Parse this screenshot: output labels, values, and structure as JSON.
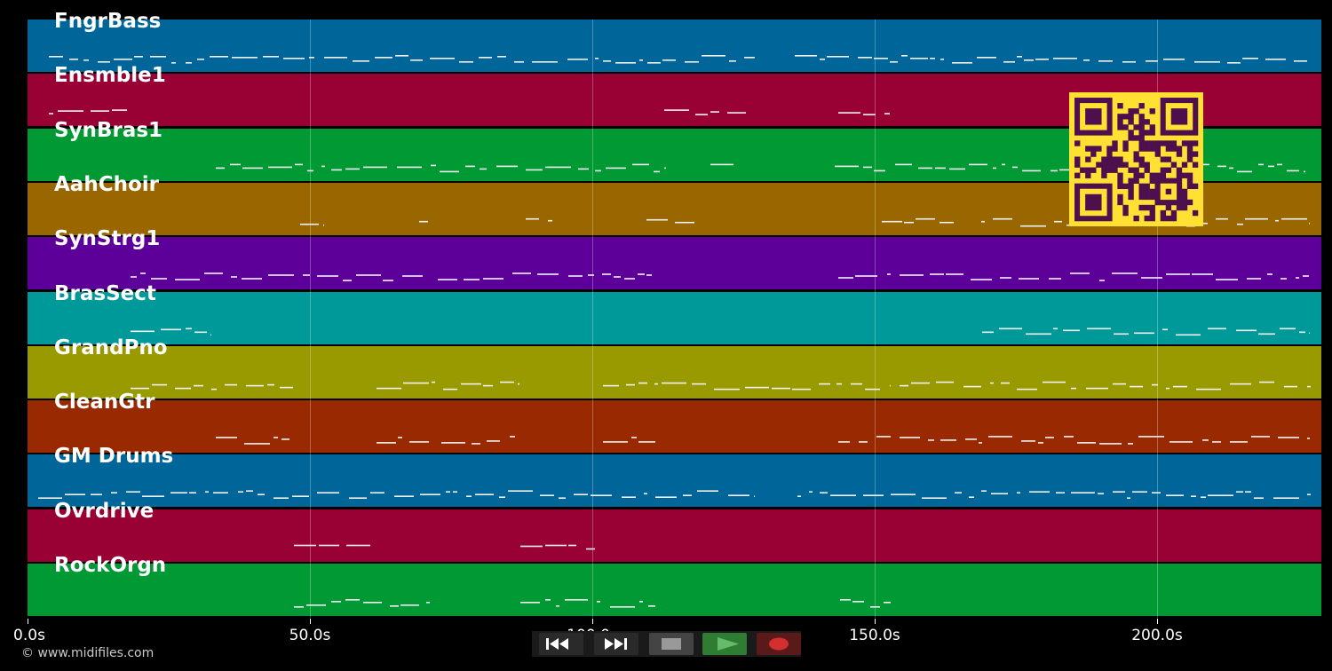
{
  "tracks": [
    {
      "name": "FngrBass",
      "color": "#006699"
    },
    {
      "name": "Ensmble1",
      "color": "#990033"
    },
    {
      "name": "SynBras1",
      "color": "#009933"
    },
    {
      "name": "AahChoir",
      "color": "#996600"
    },
    {
      "name": "SynStrg1",
      "color": "#5c0099"
    },
    {
      "name": "BrasSect",
      "color": "#009999"
    },
    {
      "name": "GrandPno",
      "color": "#999900"
    },
    {
      "name": "CleanGtr",
      "color": "#992900"
    },
    {
      "name": "GM Drums",
      "color": "#006699"
    },
    {
      "name": "Ovrdrive",
      "color": "#990033"
    },
    {
      "name": "RockOrgn",
      "color": "#009933"
    }
  ],
  "axis": {
    "ticks": [
      "0.0s",
      "50.0s",
      "100.0s",
      "150.0s",
      "200.0s"
    ]
  },
  "footer": {
    "copyright": "© www.midifiles.com"
  },
  "transport": {
    "buttons": [
      {
        "name": "rewind-button",
        "icon": "rewind-icon",
        "bg": "#2a2a2a"
      },
      {
        "name": "fast-forward-button",
        "icon": "fast-forward-icon",
        "bg": "#2a2a2a"
      },
      {
        "name": "stop-button",
        "icon": "stop-icon",
        "bg": "#444444"
      },
      {
        "name": "play-button",
        "icon": "play-icon",
        "bg": "#2e7d32"
      },
      {
        "name": "record-button",
        "icon": "record-icon",
        "bg": "#5a1a1a"
      }
    ]
  },
  "qr": {
    "icon": "qr-code-icon",
    "fg": "#4d0f4d",
    "bg": "#ffe033"
  }
}
